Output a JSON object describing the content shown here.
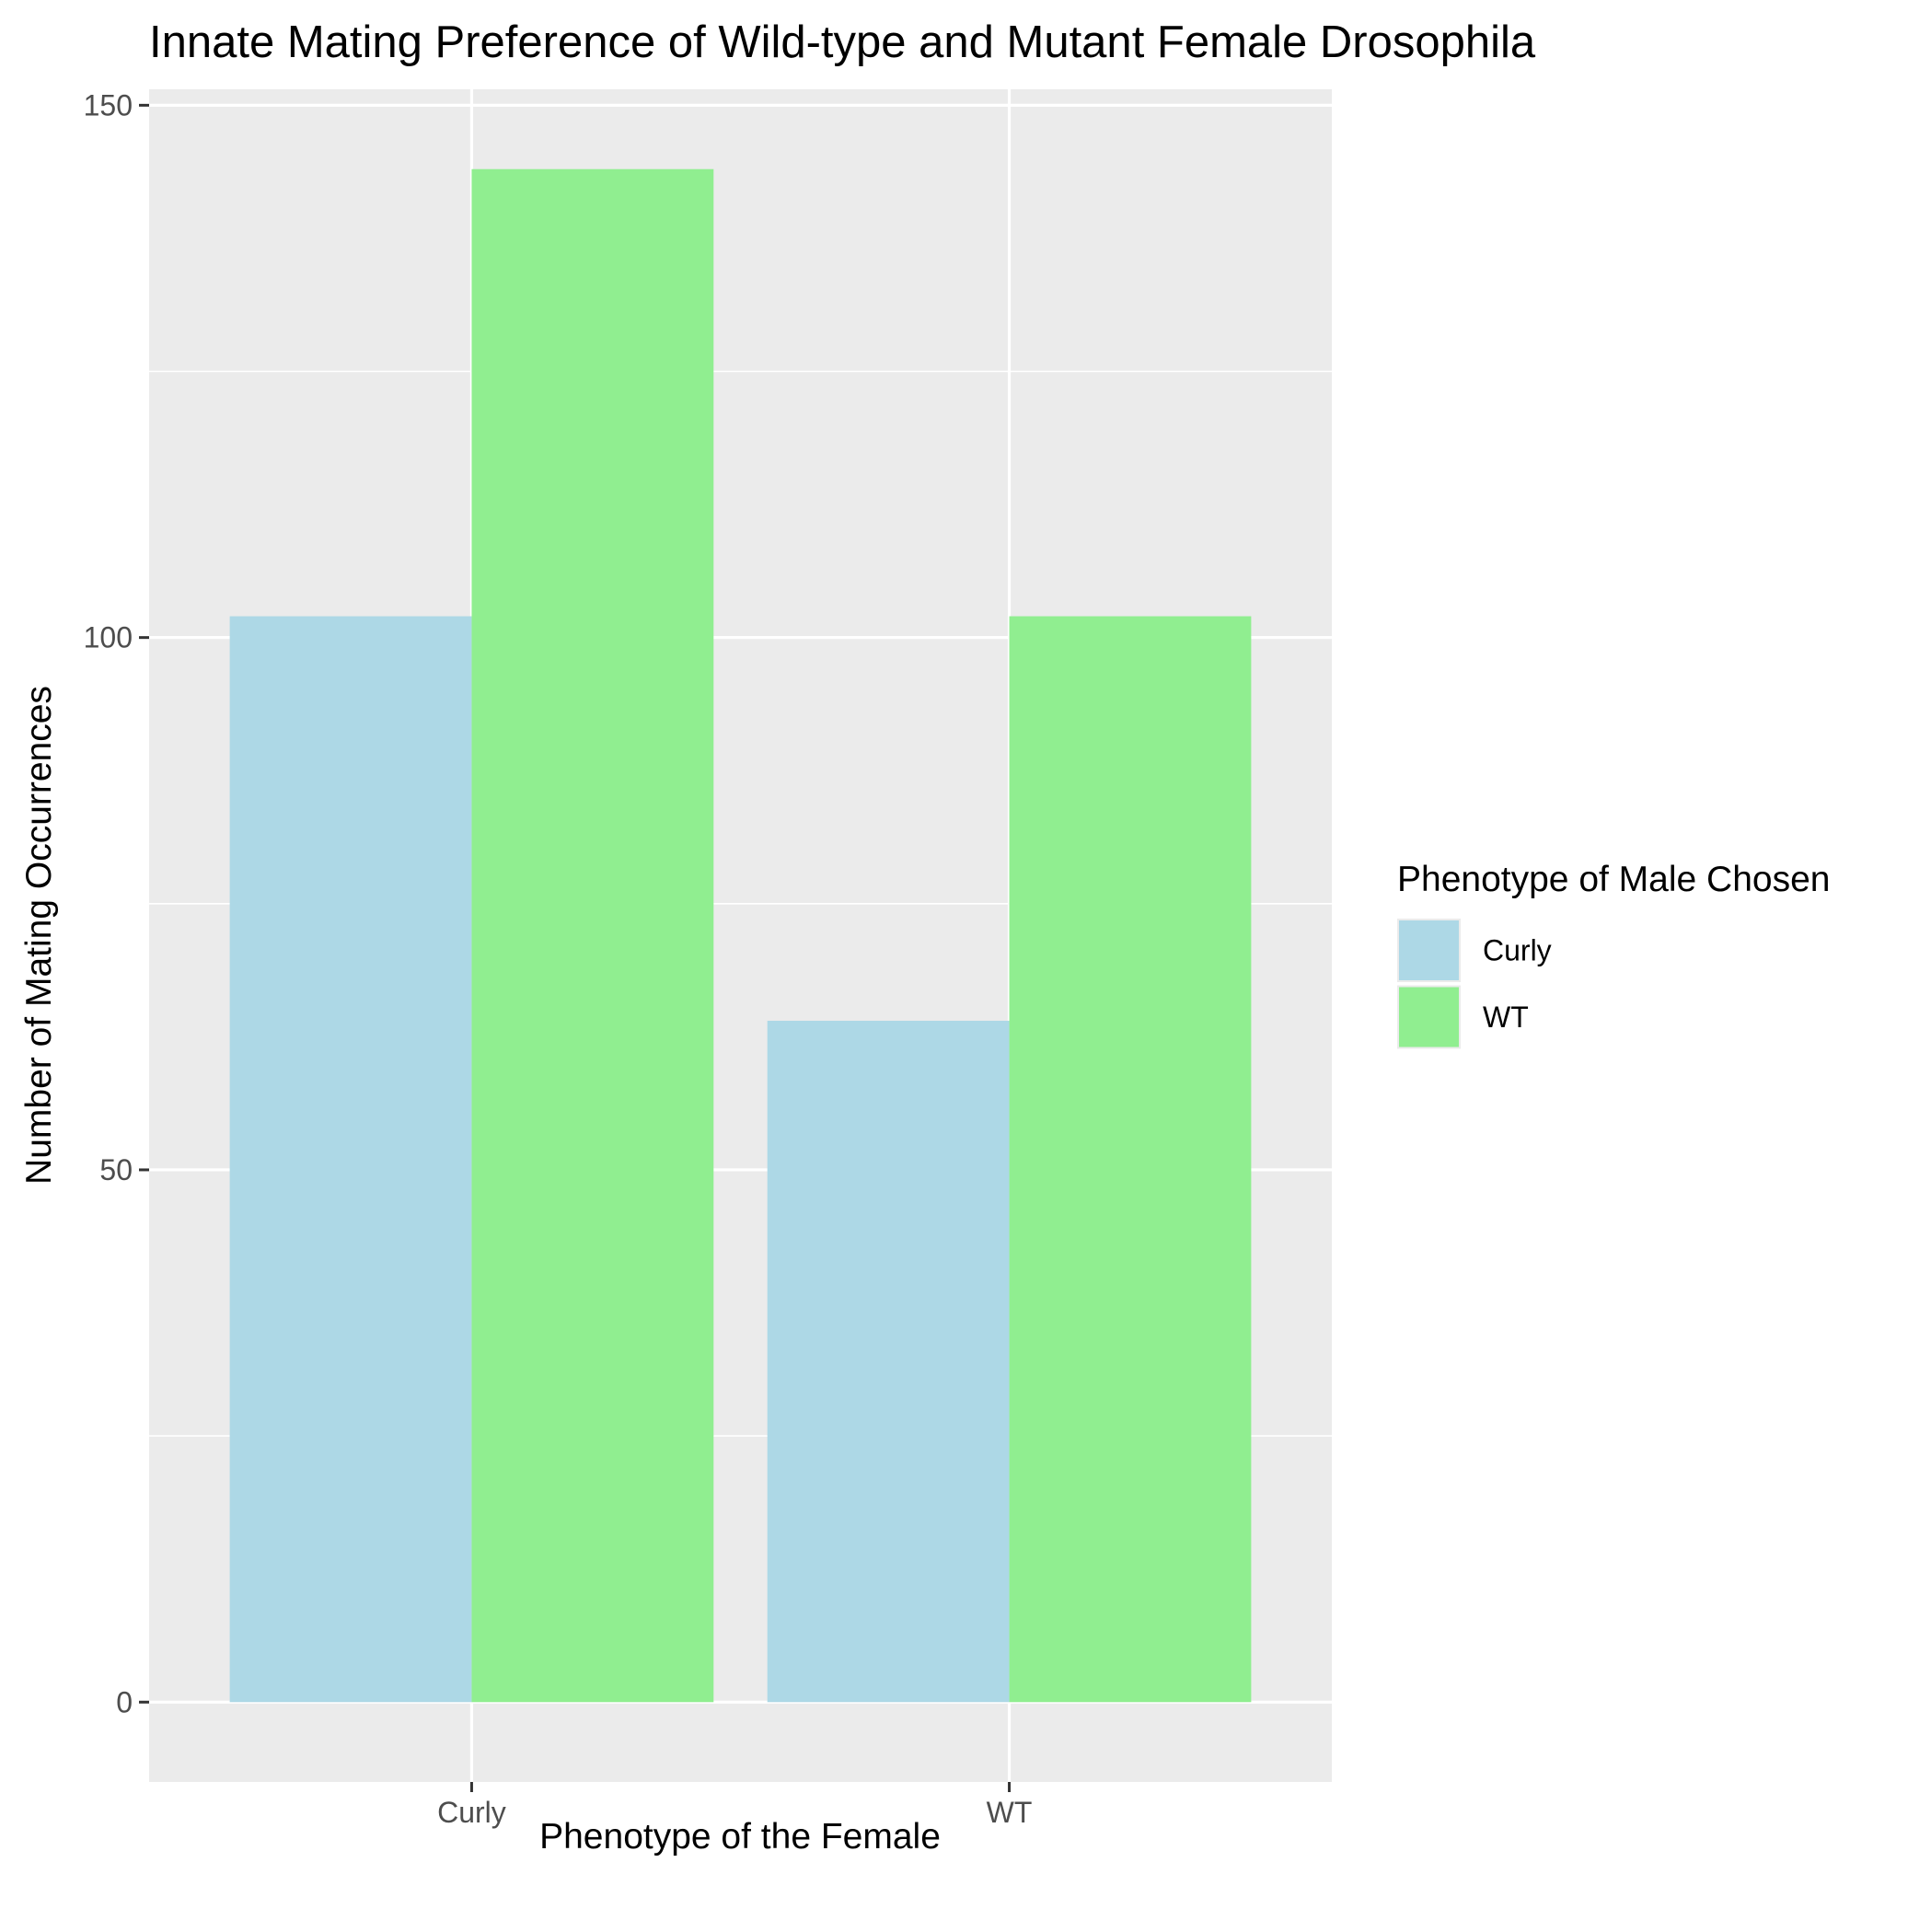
{
  "chart_data": {
    "type": "bar",
    "title": "Innate Mating Preference of Wild-type and Mutant Female Drosophila",
    "xlabel": "Phenotype of the Female",
    "ylabel": "Number of Mating Occurrences",
    "categories": [
      "Curly",
      "WT"
    ],
    "series": [
      {
        "name": "Curly",
        "values": [
          102,
          64
        ],
        "color": "#add8e6"
      },
      {
        "name": "WT",
        "values": [
          144,
          102
        ],
        "color": "#90ee90"
      }
    ],
    "ylim": [
      -7.5,
      151.5
    ],
    "yticks": [
      0,
      50,
      100,
      150
    ],
    "ytick_labels": [
      "0",
      "50",
      "100",
      "150"
    ],
    "grid": true,
    "legend": {
      "title": "Phenotype of Male Chosen",
      "position": "right"
    },
    "colors": {
      "panel_background": "#ebebeb",
      "grid": "#ffffff"
    }
  }
}
